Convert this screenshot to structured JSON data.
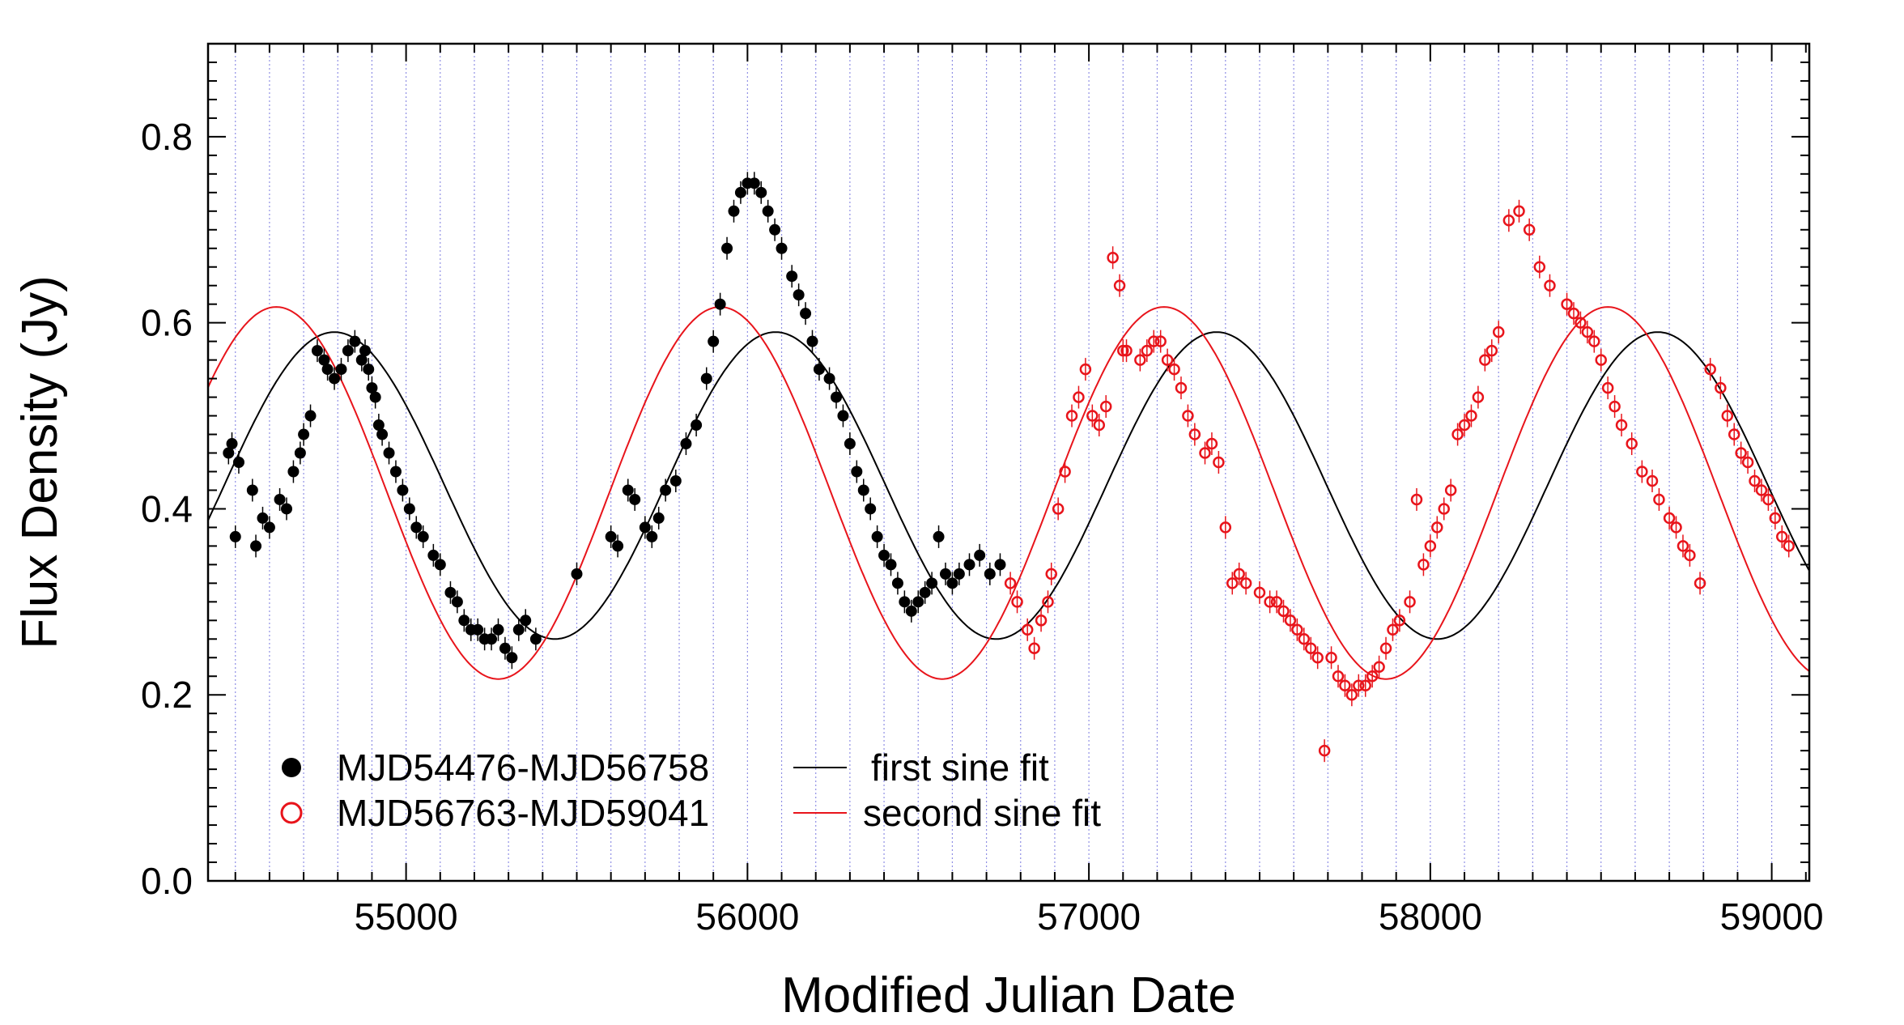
{
  "chart_data": {
    "type": "scatter",
    "xlabel": "Modified Julian Date",
    "ylabel": "Flux Density (Jy)",
    "xlim": [
      54420,
      59110
    ],
    "ylim": [
      0.0,
      0.9
    ],
    "xticks": [
      55000,
      56000,
      57000,
      58000,
      59000
    ],
    "xtick_labels": [
      "55000",
      "56000",
      "57000",
      "58000",
      "59000"
    ],
    "yticks": [
      0.0,
      0.2,
      0.4,
      0.6,
      0.8
    ],
    "ytick_labels": [
      "0.0",
      "0.2",
      "0.4",
      "0.6",
      "0.8"
    ],
    "legend_position": "bottom-left",
    "colors": {
      "first": "#000000",
      "second": "#e8141b",
      "vlines": "#6a6adc"
    },
    "series": [
      {
        "name": "MJD54476-MJD56758",
        "marker": "filled-circle",
        "color": "#000000",
        "x": [
          54480,
          54490,
          54500,
          54510,
          54550,
          54560,
          54580,
          54600,
          54630,
          54650,
          54670,
          54690,
          54700,
          54720,
          54740,
          54760,
          54770,
          54790,
          54810,
          54830,
          54850,
          54870,
          54880,
          54890,
          54900,
          54910,
          54920,
          54930,
          54950,
          54970,
          54990,
          55010,
          55030,
          55050,
          55080,
          55100,
          55130,
          55150,
          55170,
          55190,
          55210,
          55230,
          55250,
          55270,
          55290,
          55310,
          55330,
          55350,
          55380,
          55500,
          55600,
          55620,
          55650,
          55670,
          55700,
          55720,
          55740,
          55760,
          55790,
          55820,
          55850,
          55880,
          55900,
          55920,
          55940,
          55960,
          55980,
          56000,
          56020,
          56040,
          56060,
          56080,
          56100,
          56130,
          56150,
          56170,
          56190,
          56210,
          56240,
          56260,
          56280,
          56300,
          56320,
          56340,
          56360,
          56380,
          56400,
          56420,
          56440,
          56460,
          56480,
          56500,
          56520,
          56540,
          56560,
          56580,
          56600,
          56620,
          56650,
          56680,
          56710,
          56740
        ],
        "y": [
          0.46,
          0.47,
          0.37,
          0.45,
          0.42,
          0.36,
          0.39,
          0.38,
          0.41,
          0.4,
          0.44,
          0.46,
          0.48,
          0.5,
          0.57,
          0.56,
          0.55,
          0.54,
          0.55,
          0.57,
          0.58,
          0.56,
          0.57,
          0.55,
          0.53,
          0.52,
          0.49,
          0.48,
          0.46,
          0.44,
          0.42,
          0.4,
          0.38,
          0.37,
          0.35,
          0.34,
          0.31,
          0.3,
          0.28,
          0.27,
          0.27,
          0.26,
          0.26,
          0.27,
          0.25,
          0.24,
          0.27,
          0.28,
          0.26,
          0.33,
          0.37,
          0.36,
          0.42,
          0.41,
          0.38,
          0.37,
          0.39,
          0.42,
          0.43,
          0.47,
          0.49,
          0.54,
          0.58,
          0.62,
          0.68,
          0.72,
          0.74,
          0.75,
          0.75,
          0.74,
          0.72,
          0.7,
          0.68,
          0.65,
          0.63,
          0.61,
          0.58,
          0.55,
          0.54,
          0.52,
          0.5,
          0.47,
          0.44,
          0.42,
          0.4,
          0.37,
          0.35,
          0.34,
          0.32,
          0.3,
          0.29,
          0.3,
          0.31,
          0.32,
          0.37,
          0.33,
          0.32,
          0.33,
          0.34,
          0.35,
          0.33,
          0.34
        ]
      },
      {
        "name": "MJD56763-MJD59041",
        "marker": "open-circle",
        "color": "#e8141b",
        "x": [
          56770,
          56790,
          56820,
          56840,
          56860,
          56880,
          56890,
          56910,
          56930,
          56950,
          56970,
          56990,
          57010,
          57030,
          57050,
          57070,
          57090,
          57100,
          57110,
          57150,
          57170,
          57190,
          57210,
          57230,
          57250,
          57270,
          57290,
          57310,
          57340,
          57360,
          57380,
          57400,
          57420,
          57440,
          57460,
          57500,
          57530,
          57550,
          57570,
          57590,
          57610,
          57630,
          57650,
          57670,
          57690,
          57710,
          57730,
          57750,
          57770,
          57790,
          57810,
          57830,
          57850,
          57870,
          57890,
          57910,
          57940,
          57960,
          57980,
          58000,
          58020,
          58040,
          58060,
          58080,
          58100,
          58120,
          58140,
          58160,
          58180,
          58200,
          58230,
          58260,
          58290,
          58320,
          58350,
          58400,
          58420,
          58440,
          58460,
          58480,
          58500,
          58520,
          58540,
          58560,
          58590,
          58620,
          58650,
          58670,
          58700,
          58720,
          58740,
          58760,
          58790,
          58820,
          58850,
          58870,
          58890,
          58910,
          58930,
          58950,
          58970,
          58990,
          59010,
          59030,
          59050
        ],
        "y": [
          0.32,
          0.3,
          0.27,
          0.25,
          0.28,
          0.3,
          0.33,
          0.4,
          0.44,
          0.5,
          0.52,
          0.55,
          0.5,
          0.49,
          0.51,
          0.67,
          0.64,
          0.57,
          0.57,
          0.56,
          0.57,
          0.58,
          0.58,
          0.56,
          0.55,
          0.53,
          0.5,
          0.48,
          0.46,
          0.47,
          0.45,
          0.38,
          0.32,
          0.33,
          0.32,
          0.31,
          0.3,
          0.3,
          0.29,
          0.28,
          0.27,
          0.26,
          0.25,
          0.24,
          0.14,
          0.24,
          0.22,
          0.21,
          0.2,
          0.21,
          0.21,
          0.22,
          0.23,
          0.25,
          0.27,
          0.28,
          0.3,
          0.41,
          0.34,
          0.36,
          0.38,
          0.4,
          0.42,
          0.48,
          0.49,
          0.5,
          0.52,
          0.56,
          0.57,
          0.59,
          0.71,
          0.72,
          0.7,
          0.66,
          0.64,
          0.62,
          0.61,
          0.6,
          0.59,
          0.58,
          0.56,
          0.53,
          0.51,
          0.49,
          0.47,
          0.44,
          0.43,
          0.41,
          0.39,
          0.38,
          0.36,
          0.35,
          0.32,
          0.55,
          0.53,
          0.5,
          0.48,
          0.46,
          0.45,
          0.43,
          0.42,
          0.41,
          0.39,
          0.37,
          0.36
        ]
      }
    ],
    "fits": [
      {
        "name": "first sine fit",
        "color": "#000000",
        "mean": 0.425,
        "amplitude": 0.165,
        "period": 1292,
        "peak_mjd": 54790
      },
      {
        "name": "second sine fit",
        "color": "#e8141b",
        "mean": 0.417,
        "amplitude": 0.2,
        "period": 1300,
        "peak_mjd": 54620
      }
    ],
    "legend": {
      "series1_label": "MJD54476-MJD56758",
      "series2_label": "MJD56763-MJD59041",
      "fit1_label": "first sine fit",
      "fit2_label": "second sine fit"
    }
  }
}
